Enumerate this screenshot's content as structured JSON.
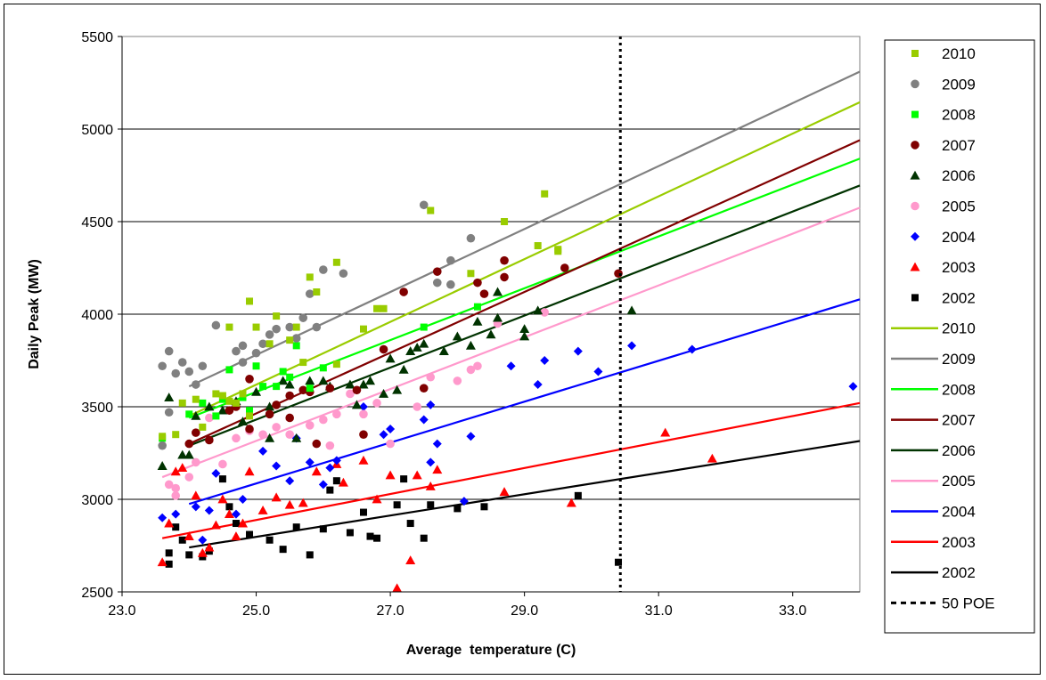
{
  "chart_data": {
    "type": "scatter",
    "xlabel": "Average  temperature (C)",
    "ylabel": "Daily Peak (MW)",
    "xlim": [
      23.0,
      34.0
    ],
    "ylim": [
      2500,
      5500
    ],
    "xticks": [
      "23.0",
      "25.0",
      "27.0",
      "29.0",
      "31.0",
      "33.0"
    ],
    "xtick_values": [
      23,
      25,
      27,
      29,
      31,
      33
    ],
    "yticks": [
      "2500",
      "3000",
      "3500",
      "4000",
      "4500",
      "5000",
      "5500"
    ],
    "ytick_values": [
      2500,
      3000,
      3500,
      4000,
      4500,
      5000,
      5500
    ],
    "grid": "horizontal",
    "legend_position": "right",
    "series": [
      {
        "name": "2010",
        "marker": "square",
        "color": "#99cc00",
        "trend": {
          "x": [
            24.0,
            34.0
          ],
          "y": [
            3450,
            5145
          ]
        },
        "points": [
          [
            23.6,
            3340
          ],
          [
            23.8,
            3350
          ],
          [
            23.9,
            3520
          ],
          [
            24.1,
            3540
          ],
          [
            24.2,
            3390
          ],
          [
            24.4,
            3570
          ],
          [
            24.5,
            3560
          ],
          [
            24.6,
            3530
          ],
          [
            24.6,
            3930
          ],
          [
            24.7,
            3520
          ],
          [
            24.8,
            3570
          ],
          [
            24.9,
            3450
          ],
          [
            24.9,
            4070
          ],
          [
            25.0,
            3930
          ],
          [
            25.2,
            3840
          ],
          [
            25.3,
            3990
          ],
          [
            25.5,
            3860
          ],
          [
            25.6,
            3930
          ],
          [
            25.7,
            3740
          ],
          [
            25.8,
            4200
          ],
          [
            25.9,
            4120
          ],
          [
            26.2,
            4280
          ],
          [
            26.2,
            3730
          ],
          [
            26.6,
            3920
          ],
          [
            26.8,
            4030
          ],
          [
            26.9,
            4030
          ],
          [
            27.6,
            4560
          ],
          [
            28.2,
            4220
          ],
          [
            28.7,
            4500
          ],
          [
            29.2,
            4370
          ],
          [
            29.3,
            4650
          ],
          [
            29.5,
            4350
          ],
          [
            29.5,
            4340
          ]
        ]
      },
      {
        "name": "2009",
        "marker": "circle",
        "color": "#808080",
        "trend": {
          "x": [
            24.0,
            34.0
          ],
          "y": [
            3610,
            5310
          ]
        },
        "points": [
          [
            23.6,
            3290
          ],
          [
            23.6,
            3720
          ],
          [
            23.7,
            3470
          ],
          [
            23.7,
            3800
          ],
          [
            23.8,
            3680
          ],
          [
            23.9,
            3740
          ],
          [
            24.0,
            3690
          ],
          [
            24.1,
            3620
          ],
          [
            24.2,
            3720
          ],
          [
            24.4,
            3940
          ],
          [
            24.7,
            3800
          ],
          [
            24.8,
            3740
          ],
          [
            24.8,
            3830
          ],
          [
            25.0,
            3790
          ],
          [
            25.1,
            3840
          ],
          [
            25.2,
            3890
          ],
          [
            25.3,
            3920
          ],
          [
            25.5,
            3930
          ],
          [
            25.6,
            3870
          ],
          [
            25.7,
            3980
          ],
          [
            25.8,
            4110
          ],
          [
            25.9,
            3930
          ],
          [
            26.0,
            4240
          ],
          [
            26.3,
            4220
          ],
          [
            27.5,
            4590
          ],
          [
            27.7,
            4170
          ],
          [
            27.9,
            4290
          ],
          [
            27.9,
            4160
          ],
          [
            28.2,
            4410
          ]
        ]
      },
      {
        "name": "2008",
        "marker": "square",
        "color": "#00ff00",
        "trend": {
          "x": [
            24.0,
            34.0
          ],
          "y": [
            3440,
            4840
          ]
        },
        "points": [
          [
            23.6,
            3330
          ],
          [
            24.0,
            3460
          ],
          [
            24.2,
            3520
          ],
          [
            24.4,
            3450
          ],
          [
            24.5,
            3540
          ],
          [
            24.6,
            3700
          ],
          [
            24.8,
            3550
          ],
          [
            24.9,
            3480
          ],
          [
            25.0,
            3720
          ],
          [
            25.1,
            3610
          ],
          [
            25.3,
            3610
          ],
          [
            25.4,
            3690
          ],
          [
            25.5,
            3660
          ],
          [
            25.6,
            3830
          ],
          [
            25.8,
            3600
          ],
          [
            26.0,
            3710
          ],
          [
            27.5,
            3930
          ],
          [
            28.3,
            4040
          ]
        ]
      },
      {
        "name": "2007",
        "marker": "circle",
        "color": "#800000",
        "trend": {
          "x": [
            24.0,
            34.0
          ],
          "y": [
            3300,
            4940
          ]
        },
        "points": [
          [
            24.0,
            3300
          ],
          [
            24.1,
            3360
          ],
          [
            24.3,
            3320
          ],
          [
            24.6,
            3480
          ],
          [
            24.7,
            3500
          ],
          [
            24.9,
            3650
          ],
          [
            24.9,
            3380
          ],
          [
            25.2,
            3460
          ],
          [
            25.3,
            3510
          ],
          [
            25.5,
            3560
          ],
          [
            25.5,
            3440
          ],
          [
            25.7,
            3590
          ],
          [
            25.8,
            3580
          ],
          [
            25.9,
            3300
          ],
          [
            26.1,
            3600
          ],
          [
            26.5,
            3590
          ],
          [
            26.6,
            3350
          ],
          [
            26.9,
            3810
          ],
          [
            27.2,
            4120
          ],
          [
            27.5,
            3600
          ],
          [
            27.7,
            4230
          ],
          [
            28.3,
            4170
          ],
          [
            28.4,
            4110
          ],
          [
            28.7,
            4290
          ],
          [
            28.7,
            4200
          ],
          [
            29.6,
            4250
          ],
          [
            30.4,
            4220
          ]
        ]
      },
      {
        "name": "2006",
        "marker": "triangle",
        "color": "#003300",
        "trend": {
          "x": [
            24.0,
            34.0
          ],
          "y": [
            3290,
            4695
          ]
        },
        "points": [
          [
            23.6,
            3180
          ],
          [
            23.7,
            3550
          ],
          [
            23.9,
            3240
          ],
          [
            24.0,
            3240
          ],
          [
            24.1,
            3450
          ],
          [
            24.3,
            3500
          ],
          [
            24.5,
            3480
          ],
          [
            24.7,
            3530
          ],
          [
            24.8,
            3420
          ],
          [
            25.0,
            3580
          ],
          [
            25.2,
            3500
          ],
          [
            25.2,
            3330
          ],
          [
            25.4,
            3640
          ],
          [
            25.5,
            3620
          ],
          [
            25.6,
            3330
          ],
          [
            25.8,
            3640
          ],
          [
            26.0,
            3640
          ],
          [
            26.4,
            3620
          ],
          [
            26.6,
            3620
          ],
          [
            26.7,
            3640
          ],
          [
            26.9,
            3570
          ],
          [
            27.0,
            3760
          ],
          [
            27.2,
            3700
          ],
          [
            27.3,
            3800
          ],
          [
            27.4,
            3820
          ],
          [
            27.5,
            3840
          ],
          [
            27.8,
            3800
          ],
          [
            28.0,
            3880
          ],
          [
            28.2,
            3830
          ],
          [
            28.3,
            3960
          ],
          [
            28.5,
            3890
          ],
          [
            28.6,
            4120
          ],
          [
            28.6,
            3980
          ],
          [
            29.0,
            3920
          ],
          [
            29.0,
            3880
          ],
          [
            29.2,
            4020
          ],
          [
            30.6,
            4020
          ],
          [
            26.1,
            3610
          ],
          [
            26.5,
            3510
          ],
          [
            27.1,
            3590
          ]
        ]
      },
      {
        "name": "2005",
        "marker": "circle",
        "color": "#ff99cc",
        "trend": {
          "x": [
            23.6,
            34.0
          ],
          "y": [
            3120,
            4575
          ]
        },
        "points": [
          [
            23.7,
            3080
          ],
          [
            23.8,
            3060
          ],
          [
            23.8,
            3020
          ],
          [
            24.0,
            3120
          ],
          [
            24.1,
            3200
          ],
          [
            24.3,
            3440
          ],
          [
            24.5,
            3190
          ],
          [
            24.7,
            3330
          ],
          [
            24.9,
            3370
          ],
          [
            25.1,
            3350
          ],
          [
            25.3,
            3390
          ],
          [
            25.5,
            3350
          ],
          [
            25.8,
            3400
          ],
          [
            26.0,
            3430
          ],
          [
            26.1,
            3290
          ],
          [
            26.2,
            3460
          ],
          [
            26.4,
            3570
          ],
          [
            26.6,
            3460
          ],
          [
            26.8,
            3520
          ],
          [
            27.0,
            3300
          ],
          [
            27.4,
            3500
          ],
          [
            27.6,
            3660
          ],
          [
            28.0,
            3640
          ],
          [
            28.2,
            3700
          ],
          [
            28.3,
            3720
          ],
          [
            28.6,
            3950
          ],
          [
            29.3,
            4010
          ]
        ]
      },
      {
        "name": "2004",
        "marker": "diamond",
        "color": "#0000ff",
        "trend": {
          "x": [
            24.0,
            34.0
          ],
          "y": [
            2975,
            4080
          ]
        },
        "points": [
          [
            23.6,
            2900
          ],
          [
            23.8,
            2920
          ],
          [
            24.1,
            2960
          ],
          [
            24.2,
            2780
          ],
          [
            24.3,
            2940
          ],
          [
            24.4,
            3140
          ],
          [
            24.7,
            2920
          ],
          [
            24.8,
            3000
          ],
          [
            25.1,
            3260
          ],
          [
            25.3,
            3180
          ],
          [
            25.5,
            3100
          ],
          [
            25.6,
            3330
          ],
          [
            25.8,
            3200
          ],
          [
            26.0,
            3080
          ],
          [
            26.1,
            3170
          ],
          [
            26.2,
            3210
          ],
          [
            26.6,
            3500
          ],
          [
            26.9,
            3350
          ],
          [
            27.0,
            3380
          ],
          [
            27.5,
            3430
          ],
          [
            27.6,
            3510
          ],
          [
            27.6,
            3200
          ],
          [
            27.7,
            3300
          ],
          [
            28.1,
            2990
          ],
          [
            28.2,
            3340
          ],
          [
            28.8,
            3720
          ],
          [
            29.2,
            3620
          ],
          [
            29.3,
            3750
          ],
          [
            29.8,
            3800
          ],
          [
            30.1,
            3690
          ],
          [
            30.6,
            3830
          ],
          [
            31.5,
            3810
          ],
          [
            33.9,
            3610
          ]
        ]
      },
      {
        "name": "2003",
        "marker": "triangle",
        "color": "#ff0000",
        "trend": {
          "x": [
            23.6,
            34.0
          ],
          "y": [
            2790,
            3520
          ]
        },
        "points": [
          [
            23.6,
            2660
          ],
          [
            23.7,
            2870
          ],
          [
            23.8,
            3150
          ],
          [
            23.9,
            3170
          ],
          [
            24.0,
            2800
          ],
          [
            24.1,
            3020
          ],
          [
            24.2,
            2710
          ],
          [
            24.3,
            2740
          ],
          [
            24.4,
            2860
          ],
          [
            24.5,
            3000
          ],
          [
            24.6,
            2920
          ],
          [
            24.7,
            2800
          ],
          [
            24.8,
            2870
          ],
          [
            24.9,
            3150
          ],
          [
            25.1,
            2940
          ],
          [
            25.3,
            3010
          ],
          [
            25.5,
            2970
          ],
          [
            25.7,
            2980
          ],
          [
            25.9,
            3150
          ],
          [
            26.2,
            3190
          ],
          [
            26.3,
            3090
          ],
          [
            26.6,
            3210
          ],
          [
            26.8,
            3000
          ],
          [
            27.0,
            3130
          ],
          [
            27.1,
            2520
          ],
          [
            27.3,
            2670
          ],
          [
            27.4,
            3130
          ],
          [
            27.6,
            3070
          ],
          [
            27.7,
            3160
          ],
          [
            28.7,
            3040
          ],
          [
            29.7,
            2980
          ],
          [
            31.1,
            3360
          ],
          [
            31.8,
            3220
          ]
        ]
      },
      {
        "name": "2002",
        "marker": "square",
        "color": "#000000",
        "trend": {
          "x": [
            24.0,
            34.0
          ],
          "y": [
            2740,
            3315
          ]
        },
        "points": [
          [
            23.7,
            2650
          ],
          [
            23.7,
            2710
          ],
          [
            23.8,
            2850
          ],
          [
            23.9,
            2780
          ],
          [
            24.0,
            2700
          ],
          [
            24.2,
            2690
          ],
          [
            24.3,
            2720
          ],
          [
            24.5,
            3110
          ],
          [
            24.6,
            2960
          ],
          [
            24.7,
            2870
          ],
          [
            24.9,
            2810
          ],
          [
            25.2,
            2780
          ],
          [
            25.4,
            2730
          ],
          [
            25.6,
            2850
          ],
          [
            25.8,
            2700
          ],
          [
            26.0,
            2840
          ],
          [
            26.1,
            3050
          ],
          [
            26.2,
            3100
          ],
          [
            26.4,
            2820
          ],
          [
            26.6,
            2930
          ],
          [
            26.7,
            2800
          ],
          [
            26.8,
            2790
          ],
          [
            27.1,
            2970
          ],
          [
            27.2,
            3110
          ],
          [
            27.3,
            2870
          ],
          [
            27.5,
            2790
          ],
          [
            27.6,
            2970
          ],
          [
            28.0,
            2950
          ],
          [
            28.4,
            2960
          ],
          [
            29.8,
            3020
          ],
          [
            30.4,
            2660
          ]
        ]
      }
    ],
    "reference_line": {
      "name": "50 POE",
      "x": 30.43,
      "style": "dotted",
      "color": "#000000"
    },
    "legend": [
      "2010",
      "2009",
      "2008",
      "2007",
      "2006",
      "2005",
      "2004",
      "2003",
      "2002",
      "2010",
      "2009",
      "2008",
      "2007",
      "2006",
      "2005",
      "2004",
      "2003",
      "2002",
      "50 POE"
    ]
  }
}
